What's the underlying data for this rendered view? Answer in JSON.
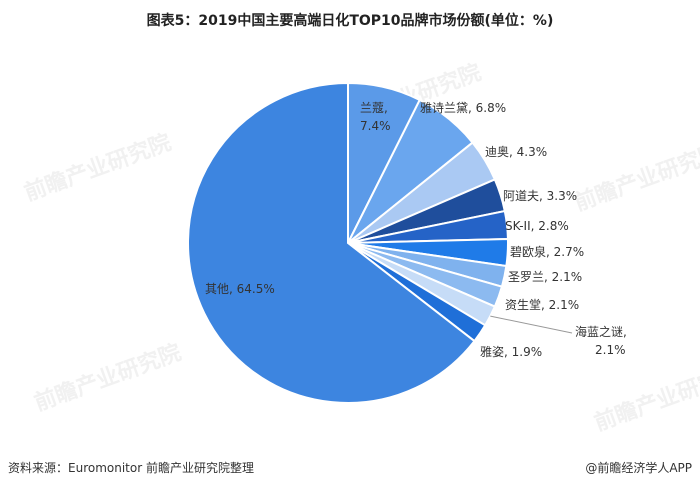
{
  "title": "图表5：2019中国主要高端日化TOP10品牌市场份额(单位：%)",
  "footer": {
    "source": "资料来源：Euromonitor 前瞻产业研究院整理",
    "brand": "@前瞻经济学人APP"
  },
  "watermark": "前瞻产业研究院",
  "chart_data": {
    "type": "pie",
    "unit": "%",
    "slices": [
      {
        "label": "兰蔻",
        "value": 7.4,
        "text": "7.4%",
        "color": "#5b9ae8"
      },
      {
        "label": "雅诗兰黛",
        "value": 6.8,
        "text": "6.8%",
        "color": "#6aa6ee"
      },
      {
        "label": "迪奥",
        "value": 4.3,
        "text": "4.3%",
        "color": "#aac9f3"
      },
      {
        "label": "阿道夫",
        "value": 3.3,
        "text": "3.3%",
        "color": "#1f4e9c"
      },
      {
        "label": "SK-II",
        "value": 2.8,
        "text": "2.8%",
        "color": "#2563c7"
      },
      {
        "label": "碧欧泉",
        "value": 2.7,
        "text": "2.7%",
        "color": "#1f7be8"
      },
      {
        "label": "圣罗兰",
        "value": 2.1,
        "text": "2.1%",
        "color": "#7fb2ee"
      },
      {
        "label": "资生堂",
        "value": 2.1,
        "text": "2.1%",
        "color": "#8cbaf0"
      },
      {
        "label": "海蓝之谜",
        "value": 2.1,
        "text": "2.1%",
        "color": "#c6dcf7"
      },
      {
        "label": "雅姿",
        "value": 1.9,
        "text": "1.9%",
        "color": "#1f6fd8"
      },
      {
        "label": "其他",
        "value": 64.5,
        "text": "64.5%",
        "color": "#3d85e0"
      }
    ]
  }
}
